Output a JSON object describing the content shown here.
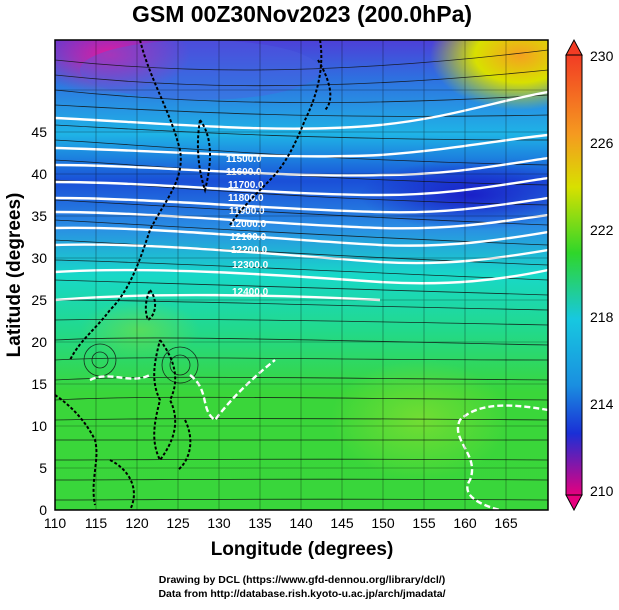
{
  "title": "GSM 00Z30Nov2023 (200.0hPa)",
  "xlabel": "Longitude (degrees)",
  "ylabel": "Latitude  (degrees)",
  "x_ticks": [
    "110",
    "115",
    "120",
    "125",
    "130",
    "135",
    "140",
    "145",
    "150",
    "155",
    "160",
    "165"
  ],
  "y_ticks": [
    "0",
    "5",
    "10",
    "15",
    "20",
    "25",
    "30",
    "35",
    "40",
    "45"
  ],
  "colorbar": {
    "ticks": [
      "230",
      "226",
      "222",
      "218",
      "214",
      "210"
    ],
    "colors": {
      "magenta": "#e6007e",
      "blue": "#1a2fd6",
      "cyan": "#17c8e0",
      "green": "#2fd62a",
      "yellow": "#d8e000",
      "red": "#f23c24"
    }
  },
  "contour_labels": [
    "11500.0",
    "11600.0",
    "11700.0",
    "11800.0",
    "11900.0",
    "12000.0",
    "12100.0",
    "12200.0",
    "12300.0",
    "12400.0"
  ],
  "credits": {
    "line1": "Drawing by DCL (https://www.gfd-dennou.org/library/dcl/)",
    "line2": "Data from http://database.rish.kyoto-u.ac.jp/arch/jmadata/"
  }
}
